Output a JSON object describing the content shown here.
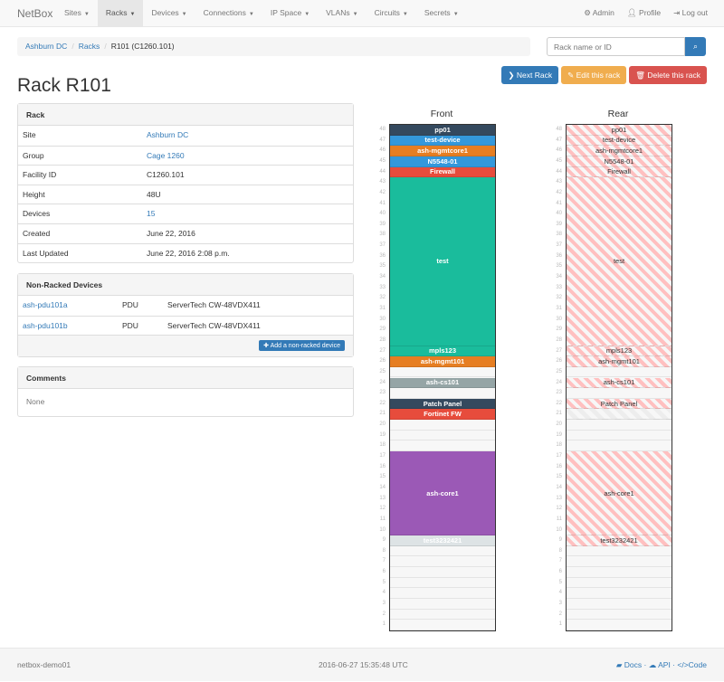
{
  "nav": {
    "brand": "NetBox",
    "menus": [
      "Sites",
      "Racks",
      "Devices",
      "Connections",
      "IP Space",
      "VLANs",
      "Circuits",
      "Secrets"
    ],
    "active": "Racks",
    "admin": "Admin",
    "profile": "Profile",
    "logout": "Log out"
  },
  "breadcrumb": [
    "Ashburn DC",
    "Racks",
    "R101 (C1260.101)"
  ],
  "search": {
    "placeholder": "Rack name or ID"
  },
  "title": "Rack R101",
  "buttons": {
    "next": "Next Rack",
    "edit": "Edit this rack",
    "delete": "Delete this rack"
  },
  "rack_panel": {
    "heading": "Rack",
    "rows": [
      {
        "label": "Site",
        "value": "Ashburn DC",
        "link": true
      },
      {
        "label": "Group",
        "value": "Cage 1260",
        "link": true
      },
      {
        "label": "Facility ID",
        "value": "C1260.101"
      },
      {
        "label": "Height",
        "value": "48U"
      },
      {
        "label": "Devices",
        "value": "15",
        "link": true
      },
      {
        "label": "Created",
        "value": "June 22, 2016"
      },
      {
        "label": "Last Updated",
        "value": "June 22, 2016 2:08 p.m."
      }
    ]
  },
  "nonracked": {
    "heading": "Non-Racked Devices",
    "rows": [
      {
        "name": "ash-pdu101a",
        "role": "PDU",
        "type": "ServerTech CW-48VDX411"
      },
      {
        "name": "ash-pdu101b",
        "role": "PDU",
        "type": "ServerTech CW-48VDX411"
      }
    ],
    "add_label": "Add a non-racked device"
  },
  "comments": {
    "heading": "Comments",
    "body": "None"
  },
  "rack": {
    "front_label": "Front",
    "rear_label": "Rear",
    "units": 48,
    "devices": [
      {
        "name": "pp01",
        "position": 48,
        "height": 1,
        "color": "#34495e",
        "rear": "full"
      },
      {
        "name": "test-device",
        "position": 47,
        "height": 1,
        "color": "#3498db",
        "rear": "full"
      },
      {
        "name": "ash-mgmtcore1",
        "position": 46,
        "height": 1,
        "color": "#e67e22",
        "rear": "full"
      },
      {
        "name": "N5548-01",
        "position": 45,
        "height": 1,
        "color": "#3498db",
        "rear": "full"
      },
      {
        "name": "Firewall",
        "position": 44,
        "height": 1,
        "color": "#e74c3c",
        "rear": "full"
      },
      {
        "name": "test",
        "position": 28,
        "height": 16,
        "color": "#1abc9c",
        "rear": "full"
      },
      {
        "name": "mpls123",
        "position": 27,
        "height": 1,
        "color": "#1abc9c",
        "rear": "full"
      },
      {
        "name": "ash-mgmt101",
        "position": 26,
        "height": 1,
        "color": "#e67e22",
        "rear": "full"
      },
      {
        "name": "ash-cs101",
        "position": 24,
        "height": 1,
        "color": "#95a5a6",
        "rear": "full"
      },
      {
        "name": "Patch Panel",
        "position": 22,
        "height": 1,
        "color": "#34495e",
        "rear": "full"
      },
      {
        "name": "Fortinet FW",
        "position": 21,
        "height": 1,
        "color": "#e74c3c",
        "rear": "blocked"
      },
      {
        "name": "ash-core1",
        "position": 10,
        "height": 8,
        "color": "#9b59b6",
        "rear": "full"
      },
      {
        "name": "test3232421",
        "position": 9,
        "height": 1,
        "color": "#dde3e5",
        "rear": "full"
      }
    ]
  },
  "footer": {
    "host": "netbox-demo01",
    "time": "2016-06-27 15:35:48 UTC",
    "docs": "Docs",
    "api": "API",
    "code": "Code"
  }
}
